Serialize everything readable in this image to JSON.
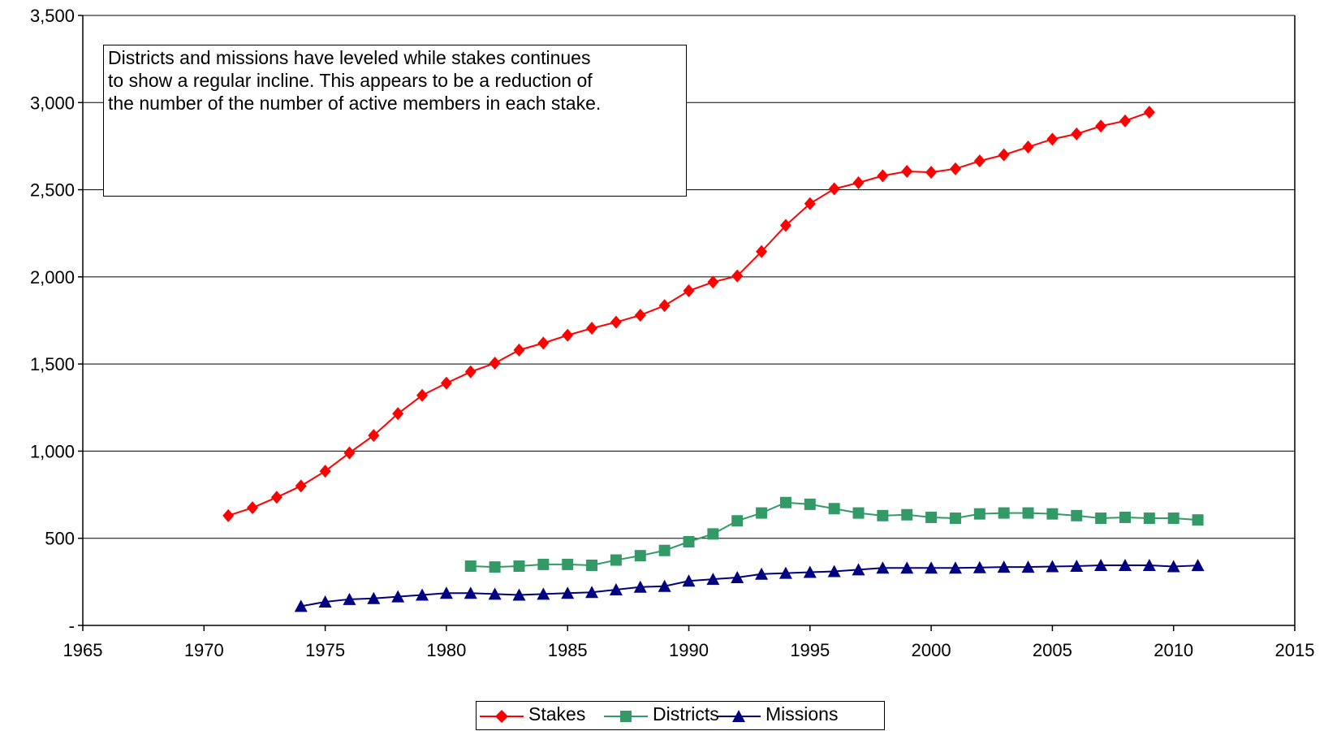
{
  "chart_data": {
    "type": "line",
    "title": "",
    "xlabel": "",
    "ylabel": "",
    "xlim": [
      1965,
      2015
    ],
    "ylim": [
      0,
      3500
    ],
    "x_ticks": [
      "1965",
      "1970",
      "1975",
      "1980",
      "1985",
      "1990",
      "1995",
      "2000",
      "2005",
      "2010",
      "2015"
    ],
    "y_ticks": [
      "-",
      "500",
      "1,000",
      "1,500",
      "2,000",
      "2,500",
      "3,000",
      "3,500"
    ],
    "grid": "horizontal",
    "legend_position": "bottom",
    "annotation": {
      "lines": [
        "Districts and missions have leveled while stakes continues",
        "to show a regular incline.  This appears to be a reduction of",
        "the number of the number of active members in each stake."
      ]
    },
    "series": [
      {
        "name": "Stakes",
        "color": "#ff0000",
        "marker": "diamond",
        "x": [
          1971,
          1972,
          1973,
          1974,
          1975,
          1976,
          1977,
          1978,
          1979,
          1980,
          1981,
          1982,
          1983,
          1984,
          1985,
          1986,
          1987,
          1988,
          1989,
          1990,
          1991,
          1992,
          1993,
          1994,
          1995,
          1996,
          1997,
          1998,
          1999,
          2000,
          2001,
          2002,
          2003,
          2004,
          2005,
          2006,
          2007,
          2008,
          2009
        ],
        "values": [
          630,
          675,
          735,
          800,
          885,
          990,
          1090,
          1215,
          1320,
          1390,
          1455,
          1505,
          1580,
          1620,
          1665,
          1705,
          1740,
          1780,
          1835,
          1920,
          1970,
          2005,
          2145,
          2295,
          2420,
          2505,
          2540,
          2580,
          2605,
          2600,
          2620,
          2665,
          2700,
          2745,
          2790,
          2820,
          2865,
          2895,
          2945
        ]
      },
      {
        "name": "Districts",
        "color": "#339966",
        "marker": "square",
        "x": [
          1981,
          1982,
          1983,
          1984,
          1985,
          1986,
          1987,
          1988,
          1989,
          1990,
          1991,
          1992,
          1993,
          1994,
          1995,
          1996,
          1997,
          1998,
          1999,
          2000,
          2001,
          2002,
          2003,
          2004,
          2005,
          2006,
          2007,
          2008,
          2009,
          2010,
          2011
        ],
        "values": [
          340,
          335,
          340,
          350,
          350,
          345,
          375,
          400,
          430,
          480,
          525,
          600,
          645,
          705,
          695,
          670,
          645,
          630,
          635,
          620,
          615,
          640,
          645,
          645,
          640,
          630,
          615,
          620,
          615,
          615,
          605
        ]
      },
      {
        "name": "Missions",
        "color": "#000080",
        "marker": "triangle",
        "x": [
          1974,
          1975,
          1976,
          1977,
          1978,
          1979,
          1980,
          1981,
          1982,
          1983,
          1984,
          1985,
          1986,
          1987,
          1988,
          1989,
          1990,
          1991,
          1992,
          1993,
          1994,
          1995,
          1996,
          1997,
          1998,
          1999,
          2000,
          2001,
          2002,
          2003,
          2004,
          2005,
          2006,
          2007,
          2008,
          2009,
          2010,
          2011
        ],
        "values": [
          110,
          135,
          150,
          155,
          165,
          175,
          185,
          185,
          180,
          175,
          180,
          185,
          190,
          205,
          220,
          225,
          255,
          265,
          275,
          295,
          300,
          305,
          310,
          320,
          330,
          330,
          330,
          330,
          332,
          335,
          335,
          338,
          340,
          345,
          345,
          345,
          338,
          344
        ]
      }
    ]
  }
}
